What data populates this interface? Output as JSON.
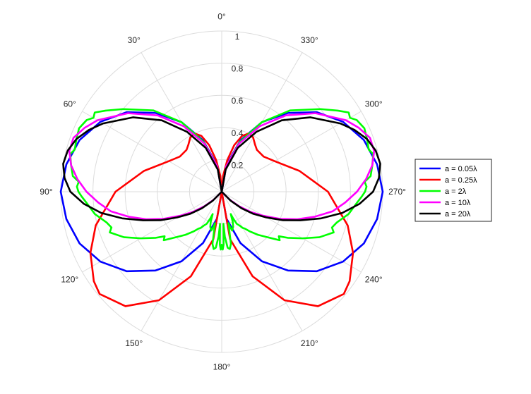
{
  "chart_data": {
    "type": "polar-line",
    "theta_zero": "top",
    "theta_direction": "counterclockwise",
    "rlim": [
      0,
      1
    ],
    "r_ticks": [
      0.2,
      0.4,
      0.6,
      0.8,
      1
    ],
    "r_tick_labels": [
      "0.2",
      "0.4",
      "0.6",
      "0.8",
      "1"
    ],
    "theta_ticks_deg": [
      0,
      30,
      60,
      90,
      120,
      150,
      180,
      210,
      240,
      270,
      300,
      330
    ],
    "theta_tick_labels": [
      "0°",
      "30°",
      "60°",
      "90°",
      "120°",
      "150°",
      "180°",
      "210°",
      "240°",
      "270°",
      "300°",
      "330°"
    ],
    "grid": true,
    "legend_position": "right",
    "series": [
      {
        "name": "a = 0.05λ",
        "color": "#0000ff",
        "points": [
          [
            0,
            0
          ],
          [
            10,
            0.17
          ],
          [
            20,
            0.34
          ],
          [
            30,
            0.5
          ],
          [
            40,
            0.64
          ],
          [
            50,
            0.77
          ],
          [
            60,
            0.87
          ],
          [
            70,
            0.94
          ],
          [
            80,
            0.98
          ],
          [
            90,
            1.0
          ],
          [
            100,
            0.98
          ],
          [
            110,
            0.94
          ],
          [
            120,
            0.87
          ],
          [
            130,
            0.77
          ],
          [
            140,
            0.64
          ],
          [
            150,
            0.5
          ],
          [
            160,
            0.34
          ],
          [
            170,
            0.17
          ],
          [
            180,
            0
          ]
        ]
      },
      {
        "name": "a = 0.25λ",
        "color": "#ff0000",
        "points": [
          [
            0,
            0
          ],
          [
            5,
            0.1
          ],
          [
            10,
            0.2
          ],
          [
            15,
            0.3
          ],
          [
            20,
            0.37
          ],
          [
            25,
            0.4
          ],
          [
            30,
            0.39
          ],
          [
            35,
            0.36
          ],
          [
            40,
            0.34
          ],
          [
            50,
            0.34
          ],
          [
            60,
            0.38
          ],
          [
            75,
            0.5
          ],
          [
            90,
            0.66
          ],
          [
            105,
            0.81
          ],
          [
            115,
            0.9
          ],
          [
            120,
            0.93
          ],
          [
            125,
            0.97
          ],
          [
            130,
            0.99
          ],
          [
            140,
            0.93
          ],
          [
            150,
            0.78
          ],
          [
            160,
            0.56
          ],
          [
            170,
            0.3
          ],
          [
            180,
            0
          ]
        ]
      },
      {
        "name": "a = 2λ",
        "color": "#00ff00",
        "points": [
          [
            0,
            0
          ],
          [
            10,
            0.16
          ],
          [
            20,
            0.33
          ],
          [
            30,
            0.5
          ],
          [
            40,
            0.66
          ],
          [
            50,
            0.8
          ],
          [
            55,
            0.88
          ],
          [
            58,
            0.93
          ],
          [
            60,
            0.92
          ],
          [
            62,
            0.95
          ],
          [
            66,
            0.97
          ],
          [
            70,
            0.96
          ],
          [
            74,
            0.95
          ],
          [
            76,
            0.97
          ],
          [
            80,
            0.95
          ],
          [
            84,
            0.93
          ],
          [
            86,
            0.89
          ],
          [
            88,
            0.9
          ],
          [
            90,
            0.89
          ],
          [
            92,
            0.87
          ],
          [
            95,
            0.84
          ],
          [
            100,
            0.8
          ],
          [
            105,
            0.74
          ],
          [
            108,
            0.72
          ],
          [
            110,
            0.74
          ],
          [
            115,
            0.67
          ],
          [
            120,
            0.58
          ],
          [
            125,
            0.5
          ],
          [
            128,
            0.45
          ],
          [
            130,
            0.47
          ],
          [
            135,
            0.4
          ],
          [
            140,
            0.35
          ],
          [
            145,
            0.3
          ],
          [
            148,
            0.27
          ],
          [
            150,
            0.26
          ],
          [
            152,
            0.24
          ],
          [
            155,
            0.22
          ],
          [
            157,
            0.18
          ],
          [
            158,
            0.15
          ],
          [
            160,
            0.2
          ],
          [
            162,
            0.23
          ],
          [
            165,
            0.25
          ],
          [
            167,
            0.22
          ],
          [
            168,
            0.2
          ],
          [
            170,
            0.33
          ],
          [
            172,
            0.36
          ],
          [
            174,
            0.35
          ],
          [
            176,
            0.28
          ],
          [
            177,
            0.2
          ],
          [
            178,
            0.33
          ],
          [
            179,
            0.36
          ],
          [
            180,
            0.33
          ]
        ]
      },
      {
        "name": "a = 10λ",
        "color": "#ff00ff",
        "points": [
          [
            0,
            0
          ],
          [
            10,
            0.16
          ],
          [
            20,
            0.32
          ],
          [
            30,
            0.47
          ],
          [
            40,
            0.62
          ],
          [
            50,
            0.76
          ],
          [
            60,
            0.89
          ],
          [
            65,
            0.94
          ],
          [
            70,
            0.98
          ],
          [
            75,
            0.98
          ],
          [
            80,
            0.95
          ],
          [
            85,
            0.9
          ],
          [
            90,
            0.84
          ],
          [
            95,
            0.77
          ],
          [
            100,
            0.7
          ],
          [
            105,
            0.6
          ],
          [
            110,
            0.5
          ],
          [
            115,
            0.4
          ],
          [
            120,
            0.3
          ],
          [
            125,
            0.22
          ],
          [
            130,
            0.14
          ],
          [
            135,
            0.07
          ],
          [
            140,
            0
          ]
        ]
      },
      {
        "name": "a = 20λ",
        "color": "#000000",
        "points": [
          [
            0,
            0
          ],
          [
            10,
            0.14
          ],
          [
            20,
            0.29
          ],
          [
            30,
            0.43
          ],
          [
            40,
            0.58
          ],
          [
            50,
            0.72
          ],
          [
            60,
            0.85
          ],
          [
            65,
            0.91
          ],
          [
            70,
            0.96
          ],
          [
            75,
            0.99
          ],
          [
            80,
            1.0
          ],
          [
            85,
            0.98
          ],
          [
            90,
            0.94
          ],
          [
            95,
            0.86
          ],
          [
            100,
            0.76
          ],
          [
            105,
            0.64
          ],
          [
            110,
            0.52
          ],
          [
            115,
            0.42
          ],
          [
            120,
            0.32
          ],
          [
            125,
            0.24
          ],
          [
            130,
            0.16
          ],
          [
            135,
            0.08
          ],
          [
            140,
            0
          ]
        ]
      }
    ]
  }
}
